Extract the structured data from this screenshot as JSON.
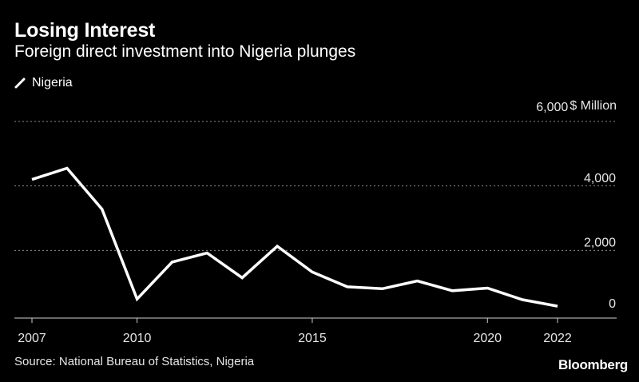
{
  "title": "Losing Interest",
  "subtitle": "Foreign direct investment into Nigeria plunges",
  "source": "Source: National Bureau of Statistics, Nigeria",
  "brand": "Bloomberg",
  "colors": {
    "background": "#000000",
    "line": "#ffffff",
    "grid": "#8c8c8c",
    "text": "#e6e6e6"
  },
  "chart_data": {
    "type": "line",
    "title": "Losing Interest",
    "subtitle": "Foreign direct investment into Nigeria plunges",
    "xlabel": "",
    "ylabel": "$ Million",
    "unit_label": "$ Million",
    "legend": [
      "Nigeria"
    ],
    "legend_position": "top-left",
    "xlim": [
      2007,
      2022
    ],
    "ylim": [
      0,
      6000
    ],
    "x_ticks": [
      2007,
      2010,
      2015,
      2020,
      2022
    ],
    "x_tick_labels": [
      "2007",
      "2010",
      "2015",
      "2020",
      "2022"
    ],
    "y_ticks": [
      0,
      2000,
      4000,
      6000
    ],
    "y_tick_labels": [
      "0",
      "2,000",
      "4,000",
      "6,000"
    ],
    "grid": true,
    "series": [
      {
        "name": "Nigeria",
        "x": [
          2007,
          2008,
          2009,
          2010,
          2011,
          2012,
          2013,
          2014,
          2015,
          2016,
          2017,
          2018,
          2019,
          2020,
          2021,
          2022
        ],
        "values": [
          4200,
          4550,
          3280,
          490,
          1640,
          1920,
          1150,
          2130,
          1330,
          870,
          810,
          1050,
          750,
          830,
          470,
          270
        ]
      }
    ]
  }
}
